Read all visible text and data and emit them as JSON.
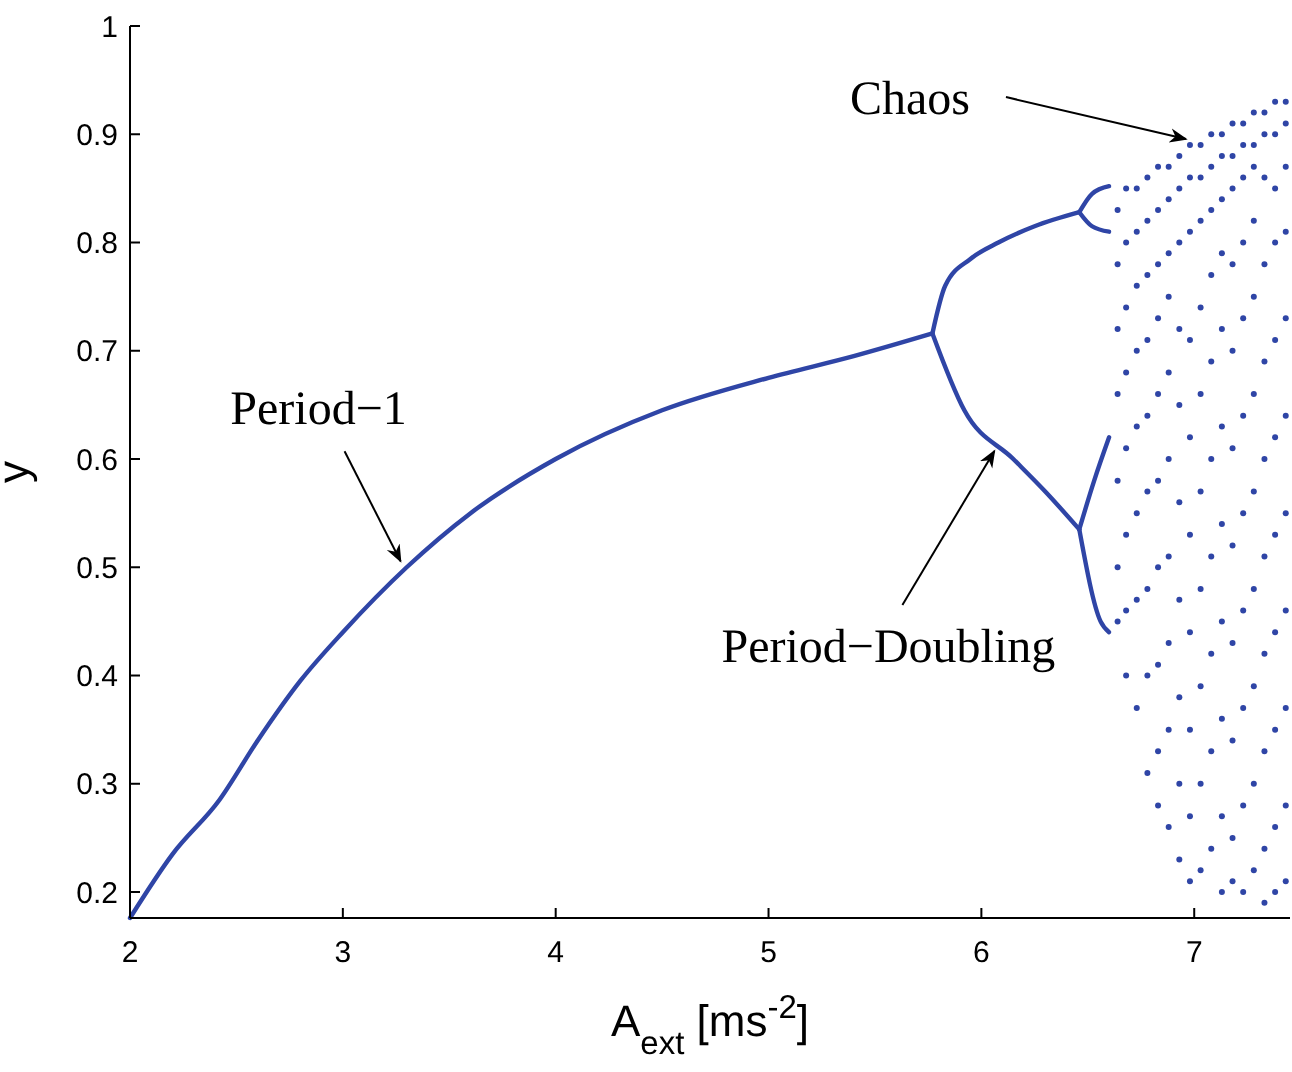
{
  "chart_data": {
    "type": "scatter",
    "xlabel": "A$_{ext}$ [ms$^{-2}$]",
    "ylabel": "y",
    "xlim": [
      2,
      7.45
    ],
    "ylim": [
      0.176,
      1
    ],
    "xticks": [
      2,
      3,
      4,
      5,
      6,
      7
    ],
    "yticks": [
      0.2,
      0.3,
      0.4,
      0.5,
      0.6,
      0.7,
      0.8,
      0.9,
      1
    ],
    "grid": false,
    "series": [
      {
        "type": "line",
        "color": "#2f45a6",
        "x": [
          2,
          2.2,
          2.42,
          2.6,
          2.8,
          3.0,
          3.3,
          3.6,
          4.0,
          4.5,
          5.0,
          5.4,
          5.77
        ],
        "values": [
          0.176,
          0.235,
          0.285,
          0.34,
          0.395,
          0.44,
          0.5,
          0.55,
          0.6,
          0.645,
          0.675,
          0.695,
          0.716
        ]
      },
      {
        "type": "line",
        "color": "#2f45a6",
        "x": [
          5.77,
          5.83,
          5.95,
          6.08,
          6.25,
          6.46
        ],
        "values": [
          0.716,
          0.76,
          0.785,
          0.8,
          0.815,
          0.828
        ]
      },
      {
        "type": "line",
        "color": "#2f45a6",
        "x": [
          5.77,
          5.92,
          6.15,
          6.3,
          6.46
        ],
        "values": [
          0.716,
          0.645,
          0.6,
          0.57,
          0.535
        ]
      },
      {
        "type": "line",
        "color": "#2f45a6",
        "x": [
          6.46,
          6.52,
          6.6
        ],
        "values": [
          0.828,
          0.845,
          0.852
        ]
      },
      {
        "type": "line",
        "color": "#2f45a6",
        "x": [
          6.46,
          6.52,
          6.6
        ],
        "values": [
          0.828,
          0.815,
          0.81
        ]
      },
      {
        "type": "line",
        "color": "#2f45a6",
        "x": [
          6.46,
          6.53,
          6.6
        ],
        "values": [
          0.535,
          0.58,
          0.62
        ]
      },
      {
        "type": "line",
        "color": "#2f45a6",
        "x": [
          6.46,
          6.56,
          6.6
        ],
        "values": [
          0.535,
          0.45,
          0.44
        ]
      },
      {
        "marker": "circle",
        "color": "#2f45a6",
        "x": [
          6.64,
          6.64,
          6.64,
          6.64,
          6.64,
          6.64,
          6.64,
          6.68,
          6.68,
          6.68,
          6.68,
          6.68,
          6.68,
          6.68,
          6.68,
          6.73,
          6.73,
          6.73,
          6.73,
          6.73,
          6.73,
          6.73,
          6.73,
          6.78,
          6.78,
          6.78,
          6.78,
          6.78,
          6.78,
          6.78,
          6.78,
          6.78,
          6.83,
          6.83,
          6.83,
          6.83,
          6.83,
          6.83,
          6.83,
          6.83,
          6.83,
          6.83,
          6.88,
          6.88,
          6.88,
          6.88,
          6.88,
          6.88,
          6.88,
          6.88,
          6.88,
          6.88,
          6.93,
          6.93,
          6.93,
          6.93,
          6.93,
          6.93,
          6.93,
          6.93,
          6.93,
          6.93,
          6.98,
          6.98,
          6.98,
          6.98,
          6.98,
          6.98,
          6.98,
          6.98,
          6.98,
          6.98,
          7.03,
          7.03,
          7.03,
          7.03,
          7.03,
          7.03,
          7.03,
          7.03,
          7.03,
          7.03,
          7.08,
          7.08,
          7.08,
          7.08,
          7.08,
          7.08,
          7.08,
          7.08,
          7.08,
          7.08,
          7.13,
          7.13,
          7.13,
          7.13,
          7.13,
          7.13,
          7.13,
          7.13,
          7.13,
          7.13,
          7.13,
          7.18,
          7.18,
          7.18,
          7.18,
          7.18,
          7.18,
          7.18,
          7.18,
          7.18,
          7.18,
          7.18,
          7.23,
          7.23,
          7.23,
          7.23,
          7.23,
          7.23,
          7.23,
          7.23,
          7.23,
          7.23,
          7.23,
          7.28,
          7.28,
          7.28,
          7.28,
          7.28,
          7.28,
          7.28,
          7.28,
          7.28,
          7.28,
          7.28,
          7.33,
          7.33,
          7.33,
          7.33,
          7.33,
          7.33,
          7.33,
          7.33,
          7.33,
          7.33,
          7.33,
          7.38,
          7.38,
          7.38,
          7.38,
          7.38,
          7.38,
          7.38,
          7.38,
          7.38,
          7.38,
          7.38,
          7.43,
          7.43,
          7.43,
          7.43,
          7.43,
          7.43,
          7.43,
          7.43,
          7.43,
          7.43,
          7.43
        ],
        "values": [
          0.83,
          0.78,
          0.72,
          0.66,
          0.58,
          0.5,
          0.45,
          0.85,
          0.8,
          0.74,
          0.68,
          0.61,
          0.53,
          0.46,
          0.4,
          0.85,
          0.81,
          0.76,
          0.7,
          0.63,
          0.55,
          0.47,
          0.37,
          0.86,
          0.82,
          0.77,
          0.71,
          0.64,
          0.57,
          0.48,
          0.4,
          0.31,
          0.87,
          0.83,
          0.78,
          0.73,
          0.66,
          0.58,
          0.5,
          0.41,
          0.33,
          0.28,
          0.87,
          0.84,
          0.79,
          0.75,
          0.68,
          0.6,
          0.51,
          0.43,
          0.35,
          0.26,
          0.88,
          0.85,
          0.8,
          0.72,
          0.65,
          0.56,
          0.47,
          0.38,
          0.3,
          0.23,
          0.89,
          0.86,
          0.81,
          0.71,
          0.62,
          0.53,
          0.44,
          0.35,
          0.27,
          0.21,
          0.89,
          0.86,
          0.82,
          0.74,
          0.66,
          0.57,
          0.48,
          0.39,
          0.3,
          0.22,
          0.9,
          0.87,
          0.83,
          0.77,
          0.69,
          0.6,
          0.51,
          0.42,
          0.33,
          0.24,
          0.9,
          0.88,
          0.84,
          0.79,
          0.72,
          0.63,
          0.54,
          0.45,
          0.36,
          0.27,
          0.2,
          0.91,
          0.88,
          0.85,
          0.78,
          0.7,
          0.61,
          0.52,
          0.43,
          0.34,
          0.25,
          0.21,
          0.91,
          0.89,
          0.86,
          0.8,
          0.73,
          0.64,
          0.55,
          0.46,
          0.37,
          0.28,
          0.2,
          0.92,
          0.89,
          0.87,
          0.82,
          0.75,
          0.66,
          0.57,
          0.48,
          0.39,
          0.3,
          0.22,
          0.92,
          0.9,
          0.86,
          0.78,
          0.69,
          0.6,
          0.51,
          0.42,
          0.33,
          0.24,
          0.19,
          0.93,
          0.9,
          0.85,
          0.8,
          0.71,
          0.62,
          0.53,
          0.44,
          0.35,
          0.26,
          0.2,
          0.93,
          0.91,
          0.87,
          0.81,
          0.73,
          0.64,
          0.55,
          0.46,
          0.37,
          0.28,
          0.21
        ]
      }
    ],
    "annotations": [
      {
        "text": "Period−1",
        "x": 3.29,
        "y": 0.5
      },
      {
        "text": "Period−Doubling",
        "x": 6.08,
        "y": 0.613
      },
      {
        "text": "Chaos",
        "x": 6.98,
        "y": 0.89
      }
    ]
  }
}
